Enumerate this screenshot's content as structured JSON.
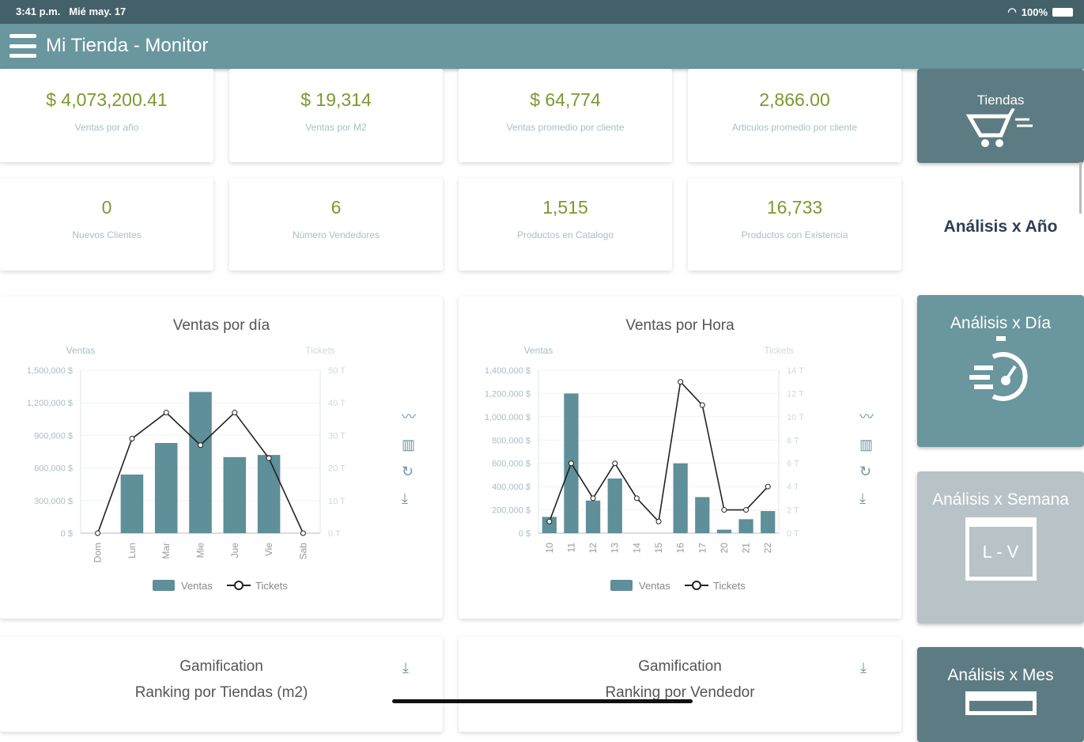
{
  "status_bar": {
    "time": "3:41 p.m.",
    "date": "Mié may. 17",
    "battery": "100%"
  },
  "header": {
    "title": "Mi Tienda - Monitor"
  },
  "kpis": [
    {
      "value": "$ 4,073,200.41",
      "label": "Ventas por año"
    },
    {
      "value": "$ 19,314",
      "label": "Ventas por M2"
    },
    {
      "value": "$ 64,774",
      "label": "Ventas promedio por cliente"
    },
    {
      "value": "2,866.00",
      "label": "Articulos promedio por cliente"
    },
    {
      "value": "0",
      "label": "Nuevos Clientes"
    },
    {
      "value": "6",
      "label": "Número Vendedores"
    },
    {
      "value": "1,515",
      "label": "Productos en Catalogo"
    },
    {
      "value": "16,733",
      "label": "Productos con Existencia"
    }
  ],
  "sidebar": {
    "tiendas": "Tiendas",
    "anio": "Análisis x Año",
    "dia": "Análisis x Día",
    "semana": "Análisis x Semana",
    "semana_icon_text": "L - V",
    "mes": "Análisis x Mes"
  },
  "gamification": [
    {
      "title": "Gamification",
      "subtitle": "Ranking por Tiendas (m2)"
    },
    {
      "title": "Gamification",
      "subtitle": "Ranking por Vendedor"
    }
  ],
  "colors": {
    "bar": "#5f8f98",
    "accent": "#7a9a2e",
    "header": "#6a969e"
  },
  "chart_data": [
    {
      "type": "bar",
      "title": "Ventas por día",
      "ylabel": "Ventas",
      "y2label": "Tickets",
      "categories": [
        "Dom",
        "Lun",
        "Mar",
        "Mie",
        "Jue",
        "Vie",
        "Sab"
      ],
      "ylim": [
        0,
        1500000
      ],
      "yticks": [
        "0 $",
        "300,000 $",
        "600,000 $",
        "900,000 $",
        "1,200,000 $",
        "1,500,000 $"
      ],
      "y2lim": [
        0,
        50
      ],
      "y2ticks": [
        "0 T",
        "10 T",
        "20 T",
        "30 T",
        "40 T",
        "50 T"
      ],
      "series": [
        {
          "name": "Ventas",
          "type": "bar",
          "values": [
            0,
            540000,
            830000,
            1300000,
            700000,
            720000,
            0
          ]
        },
        {
          "name": "Tickets",
          "type": "line",
          "axis": "right",
          "values": [
            0,
            29,
            37,
            27,
            37,
            23,
            0
          ]
        }
      ],
      "legend": "bottom",
      "grid": true
    },
    {
      "type": "bar",
      "title": "Ventas por Hora",
      "ylabel": "Ventas",
      "y2label": "Tickets",
      "categories": [
        "10",
        "11",
        "12",
        "13",
        "14",
        "15",
        "16",
        "17",
        "20",
        "21",
        "22"
      ],
      "ylim": [
        0,
        1400000
      ],
      "yticks": [
        "0 $",
        "200,000 $",
        "400,000 $",
        "600,000 $",
        "800,000 $",
        "1,000,000 $",
        "1,200,000 $",
        "1,400,000 $"
      ],
      "y2lim": [
        0,
        14
      ],
      "y2ticks": [
        "0 T",
        "2 T",
        "4 T",
        "6 T",
        "8 T",
        "10 T",
        "12 T",
        "14 T"
      ],
      "series": [
        {
          "name": "Ventas",
          "type": "bar",
          "values": [
            140000,
            1200000,
            280000,
            470000,
            0,
            0,
            600000,
            310000,
            30000,
            120000,
            190000
          ]
        },
        {
          "name": "Tickets",
          "type": "line",
          "axis": "right",
          "values": [
            1,
            6,
            3,
            6,
            3,
            1,
            13,
            11,
            2,
            2,
            4
          ]
        }
      ],
      "legend": "bottom",
      "grid": true
    }
  ]
}
